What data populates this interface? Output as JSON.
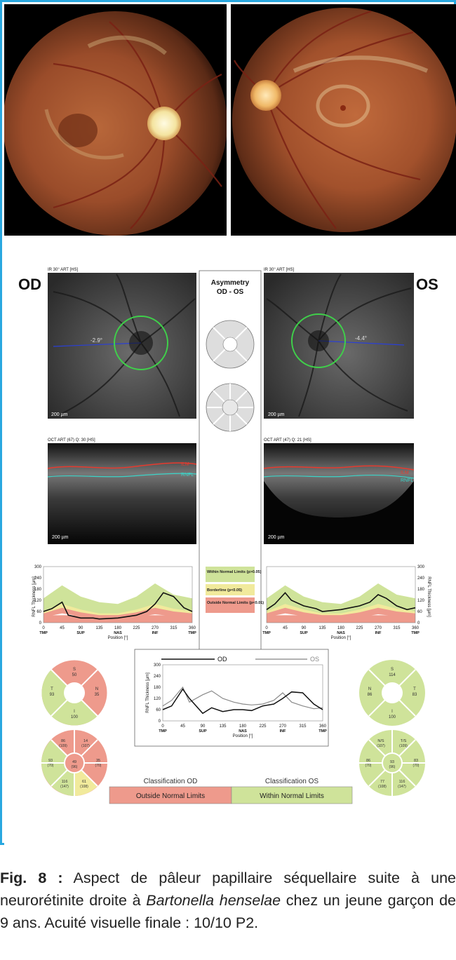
{
  "report": {
    "eye_od": "OD",
    "eye_os": "OS",
    "asymmetry_title": "Asymmetry",
    "asymmetry_subtitle": "OD - OS",
    "ir_header_od": "IR 30° ART [HS]",
    "ir_header_os": "IR 30° ART [HS]",
    "angle_od": "-2.9°",
    "angle_os": "-4.4°",
    "scale_ir": "200 µm",
    "oct_header_od": "OCT ART (67) Q: 30 [HS]",
    "oct_header_os": "OCT ART (47) Q: 21 [HS]",
    "scale_oct": "200 µm",
    "ilm_label": "ILM",
    "rnfl_label": "RNFL",
    "y_axis_label": "RNFL Thickness [µm]",
    "x_axis_label": "Position [°]",
    "y_ticks": [
      "300",
      "240",
      "180",
      "120",
      "60",
      "0"
    ],
    "x_ticks": [
      "0",
      "45",
      "90",
      "135",
      "180",
      "225",
      "270",
      "315",
      "360"
    ],
    "x_sectors": [
      "TMP",
      "SUP",
      "NAS",
      "INF",
      "TMP"
    ],
    "legend": {
      "within": "Within Normal Limits (p>0.05)",
      "borderline": "Borderline (p<0.05)",
      "outside": "Outside Normal Limits (p<0.01)"
    },
    "compare_od": "OD",
    "compare_os": "OS",
    "classification_od_title": "Classification OD",
    "classification_os_title": "Classification OS",
    "classification_od_value": "Outside Normal Limits",
    "classification_os_value": "Within Normal Limits",
    "colors": {
      "within": "#cfe39a",
      "borderline": "#f1ea9c",
      "outside": "#ee9a8c",
      "accent": "#29a8e0"
    }
  },
  "circle_od_4": {
    "S": "50",
    "T": "93",
    "N": "35",
    "I": "100"
  },
  "circle_os_4": {
    "S": "114",
    "T": "83",
    "N": "86",
    "I": "100"
  },
  "circle_od_6": {
    "TS": "86",
    "NS": "14",
    "T": "93",
    "G": "49",
    "N": "35",
    "TI": "116",
    "NI": "61",
    "TS_n": "(109)",
    "NS_n": "(107)",
    "T_n": "(70)",
    "G_n": "(96)",
    "N_n": "(70)",
    "TI_n": "(147)",
    "NI_n": "(108)"
  },
  "circle_os_6": {
    "NS": "N/S",
    "TS": "T/S",
    "N": "86",
    "G": "93",
    "T": "83",
    "NI": "77",
    "TI": "116",
    "NS_n": "(107)",
    "TS_n": "(109)",
    "N_n": "(70)",
    "G_n": "(96)",
    "T_n": "(70)",
    "NI_n": "(108)",
    "TI_n": "(147)"
  },
  "chart_data": [
    {
      "type": "line",
      "title": "OD",
      "xlabel": "Position [°]",
      "ylabel": "RNFL Thickness [µm]",
      "xlim": [
        0,
        360
      ],
      "ylim": [
        0,
        300
      ],
      "x": [
        0,
        20,
        45,
        60,
        90,
        120,
        135,
        180,
        225,
        250,
        270,
        290,
        315,
        340,
        360
      ],
      "series": [
        {
          "name": "OD",
          "values": [
            60,
            75,
            110,
            40,
            25,
            25,
            20,
            25,
            40,
            60,
            100,
            160,
            140,
            80,
            60
          ]
        }
      ]
    },
    {
      "type": "line",
      "title": "OS",
      "xlabel": "Position [°]",
      "ylabel": "RNFL Thickness [µm]",
      "xlim": [
        0,
        360
      ],
      "ylim": [
        0,
        300
      ],
      "x": [
        0,
        20,
        45,
        60,
        90,
        120,
        135,
        180,
        225,
        250,
        270,
        290,
        315,
        340,
        360
      ],
      "series": [
        {
          "name": "OS",
          "values": [
            70,
            100,
            160,
            120,
            90,
            75,
            60,
            70,
            90,
            110,
            150,
            130,
            90,
            70,
            80
          ]
        }
      ]
    },
    {
      "type": "line",
      "title": "",
      "xlabel": "Position [°]",
      "ylabel": "RNFL Thickness [µm]",
      "xlim": [
        0,
        360
      ],
      "ylim": [
        0,
        300
      ],
      "x": [
        0,
        20,
        45,
        60,
        90,
        110,
        135,
        160,
        180,
        200,
        225,
        250,
        270,
        290,
        315,
        340,
        360
      ],
      "series": [
        {
          "name": "OD",
          "values": [
            60,
            80,
            170,
            120,
            40,
            70,
            50,
            60,
            60,
            55,
            80,
            90,
            120,
            155,
            150,
            90,
            60
          ]
        },
        {
          "name": "OS",
          "values": [
            80,
            110,
            180,
            100,
            140,
            160,
            120,
            100,
            90,
            85,
            90,
            110,
            150,
            100,
            80,
            65,
            70
          ]
        }
      ]
    }
  ],
  "caption": {
    "label": "Fig. 8 :",
    "text_before": " Aspect de pâleur papillaire séquellaire suite à une neurorétinite droite à ",
    "italic": "Bartonella henselae",
    "text_after": " chez un jeune garçon de 9 ans. Acuité visuelle finale : 10/10 P2."
  }
}
